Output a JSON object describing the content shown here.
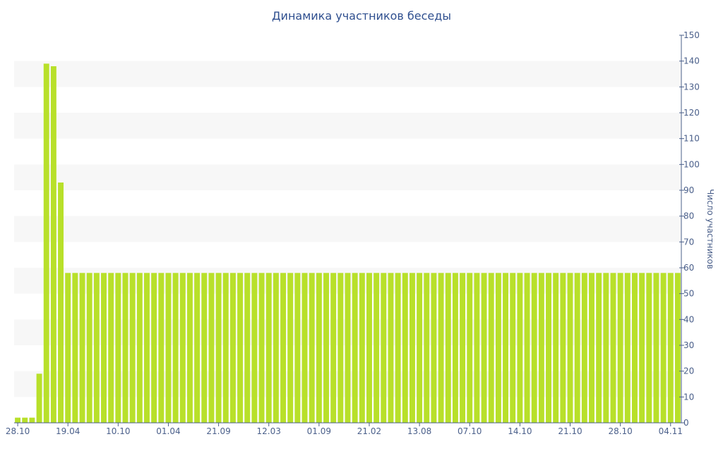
{
  "chart_data": {
    "type": "bar",
    "title": "Динамика участников беседы",
    "xlabel": "",
    "ylabel": "Число участников",
    "ylim": [
      0,
      150
    ],
    "y_ticks": [
      0,
      10,
      20,
      30,
      40,
      50,
      60,
      70,
      80,
      90,
      100,
      110,
      120,
      130,
      140,
      150
    ],
    "y_axis_side": "right",
    "grid": "alternating horizontal bands",
    "x_tick_labels": [
      "28.10",
      "19.04",
      "10.10",
      "01.04",
      "21.09",
      "12.03",
      "01.09",
      "21.02",
      "13.08",
      "07.10",
      "14.10",
      "21.10",
      "28.10",
      "04.11"
    ],
    "x_tick_label_index": [
      0,
      7,
      14,
      21,
      28,
      35,
      42,
      49,
      56,
      63,
      70,
      77,
      84,
      91
    ],
    "values": [
      2,
      2,
      2,
      19,
      139,
      138,
      93,
      58,
      58,
      58,
      58,
      58,
      58,
      58,
      58,
      58,
      58,
      58,
      58,
      58,
      58,
      58,
      58,
      58,
      58,
      58,
      58,
      58,
      58,
      58,
      58,
      58,
      58,
      58,
      58,
      58,
      58,
      58,
      58,
      58,
      58,
      58,
      58,
      58,
      58,
      58,
      58,
      58,
      58,
      58,
      58,
      58,
      58,
      58,
      58,
      58,
      58,
      58,
      58,
      58,
      58,
      58,
      58,
      58,
      58,
      58,
      58,
      58,
      58,
      58,
      58,
      58,
      58,
      58,
      58,
      58,
      58,
      58,
      58,
      58,
      58,
      58,
      58,
      58,
      58,
      58,
      58,
      58,
      58,
      58,
      58,
      58,
      58
    ],
    "colors": {
      "bar": "#b8e02a",
      "axis": "#4a5f8a",
      "title": "#2f4f8f",
      "band": "#f7f7f7"
    }
  }
}
